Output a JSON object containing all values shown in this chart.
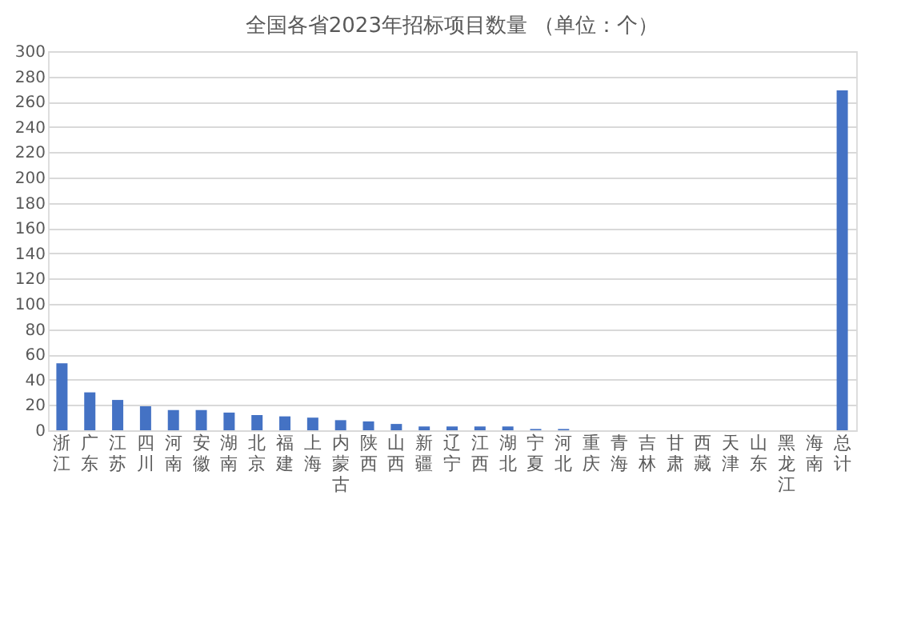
{
  "chart_data": {
    "type": "bar",
    "title": "全国各省2023年招标项目数量 （单位：个）",
    "categories": [
      "浙江",
      "广东",
      "江苏",
      "四川",
      "河南",
      "安徽",
      "湖南",
      "北京",
      "福建",
      "上海",
      "内蒙古",
      "陕西",
      "山西",
      "新疆",
      "辽宁",
      "江西",
      "湖北",
      "宁夏",
      "河北",
      "重庆",
      "青海",
      "吉林",
      "甘肃",
      "西藏",
      "天津",
      "山东",
      "黑龙江",
      "海南",
      "总计"
    ],
    "values": [
      53,
      30,
      24,
      19,
      16,
      16,
      14,
      12,
      11,
      10,
      8,
      7,
      5,
      3,
      3,
      3,
      3,
      1,
      1,
      0,
      0,
      0,
      0,
      0,
      0,
      0,
      0,
      0,
      269
    ],
    "color": "#4472c4",
    "ylim": [
      0,
      300
    ],
    "yticks": [
      0,
      20,
      40,
      60,
      80,
      100,
      120,
      140,
      160,
      180,
      200,
      220,
      240,
      260,
      280,
      300
    ],
    "grid": "y"
  }
}
